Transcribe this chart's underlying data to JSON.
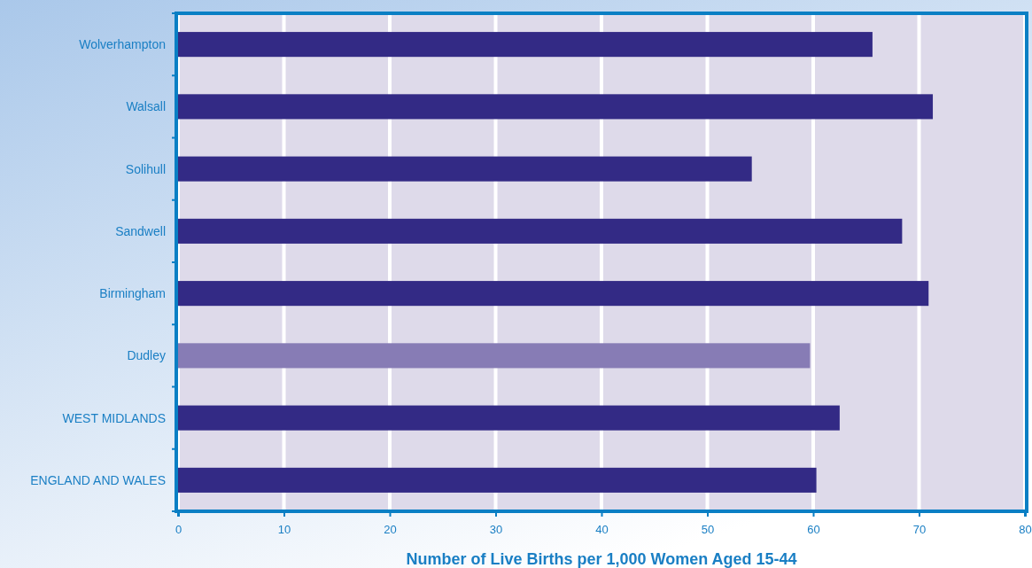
{
  "chart_data": {
    "type": "bar",
    "orientation": "horizontal",
    "xlabel": "Number of Live Births per 1,000 Women Aged 15-44",
    "categories": [
      "Wolverhampton",
      "Walsall",
      "Solihull",
      "Sandwell",
      "Birmingham",
      "Dudley",
      "WEST MIDLANDS",
      "ENGLAND AND WALES"
    ],
    "values": [
      65.6,
      71.3,
      54.2,
      68.4,
      70.9,
      59.7,
      62.5,
      60.3
    ],
    "colors": [
      "#332a85",
      "#332a85",
      "#332a85",
      "#332a85",
      "#332a85",
      "#877cb5",
      "#332a85",
      "#332a85"
    ],
    "xlim": [
      0,
      80
    ],
    "xticks": [
      0,
      10,
      20,
      30,
      40,
      50,
      60,
      70,
      80
    ],
    "grid": "x"
  }
}
